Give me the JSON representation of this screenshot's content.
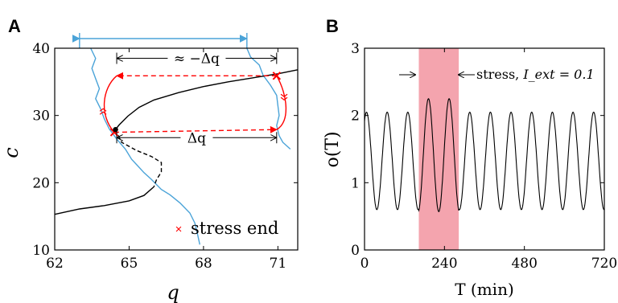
{
  "chart_data": [
    {
      "panel_letter": "A",
      "type": "line",
      "title": "",
      "xlabel": "q",
      "ylabel": "c",
      "xlim": [
        62,
        71.8
      ],
      "ylim": [
        10,
        40
      ],
      "x_ticks": [
        62,
        65,
        68,
        71
      ],
      "y_ticks": [
        10,
        20,
        30,
        40
      ],
      "grid": false,
      "colors": {
        "bifurcation": "#000000",
        "trajectory": "#4aa3d8",
        "stress": "#ff0000",
        "arrow": "#4aa3d8"
      },
      "series": [
        {
          "style": "solid-black",
          "points": [
            [
              71.8,
              36.8
            ],
            [
              71.0,
              36.2
            ],
            [
              70.0,
              35.6
            ],
            [
              69.0,
              35.0
            ],
            [
              68.0,
              34.3
            ],
            [
              67.0,
              33.4
            ],
            [
              66.0,
              32.3
            ],
            [
              65.4,
              31.2
            ],
            [
              64.95,
              29.9
            ],
            [
              64.6,
              28.6
            ],
            [
              64.45,
              27.9
            ]
          ]
        },
        {
          "style": "dashed-black",
          "points": [
            [
              64.45,
              27.9
            ],
            [
              64.7,
              26.0
            ],
            [
              65.3,
              24.8
            ],
            [
              65.9,
              23.9
            ],
            [
              66.3,
              23.0
            ],
            [
              66.3,
              21.6
            ],
            [
              66.1,
              20.4
            ],
            [
              66.0,
              19.4
            ]
          ]
        },
        {
          "style": "solid-black",
          "points": [
            [
              66.0,
              19.4
            ],
            [
              65.6,
              18.1
            ],
            [
              65.0,
              17.3
            ],
            [
              64.0,
              16.6
            ],
            [
              63.0,
              16.1
            ],
            [
              62.0,
              15.3
            ]
          ]
        },
        {
          "style": "blue-trajectory-left",
          "points": [
            [
              63.45,
              40.0
            ],
            [
              63.65,
              38.5
            ],
            [
              63.5,
              37.0
            ],
            [
              63.65,
              35.5
            ],
            [
              63.8,
              34.0
            ],
            [
              63.65,
              32.5
            ],
            [
              63.85,
              31.0
            ],
            [
              64.0,
              29.5
            ],
            [
              64.2,
              28.0
            ],
            [
              64.5,
              26.5
            ],
            [
              64.85,
              25.0
            ],
            [
              65.1,
              23.5
            ],
            [
              65.35,
              22.5
            ],
            [
              65.6,
              21.5
            ],
            [
              65.9,
              20.5
            ],
            [
              66.3,
              19.0
            ],
            [
              66.65,
              18.2
            ],
            [
              67.05,
              17.0
            ],
            [
              67.45,
              15.5
            ],
            [
              67.65,
              14.0
            ],
            [
              67.75,
              12.5
            ],
            [
              67.85,
              10.8
            ]
          ]
        },
        {
          "style": "blue-trajectory-right",
          "points": [
            [
              69.75,
              40.0
            ],
            [
              69.9,
              38.7
            ],
            [
              70.25,
              37.5
            ],
            [
              70.4,
              36.0
            ],
            [
              70.7,
              34.5
            ],
            [
              70.95,
              33.0
            ],
            [
              71.0,
              31.5
            ],
            [
              71.05,
              30.0
            ],
            [
              70.95,
              28.5
            ],
            [
              71.05,
              27.0
            ],
            [
              71.2,
              26.0
            ],
            [
              71.5,
              25.0
            ]
          ]
        }
      ],
      "stress_paths": [
        {
          "from": [
            64.4,
            27.5
          ],
          "to": [
            70.95,
            27.9
          ]
        },
        {
          "from": [
            70.95,
            35.9
          ],
          "to": [
            64.5,
            35.9
          ]
        }
      ],
      "stress_end_markers": [
        [
          64.4,
          27.5
        ],
        [
          70.95,
          35.9
        ]
      ],
      "equilibrium_point": [
        64.45,
        27.9
      ],
      "delta_q_annotations": [
        {
          "text": "≈ −Δq",
          "y": 38.5,
          "x_start": 64.5,
          "x_end": 70.95
        },
        {
          "text": "Δq",
          "y": 26.7,
          "x_start": 64.5,
          "x_end": 70.95
        }
      ],
      "blue_arrow": {
        "x_start": 63.0,
        "x_end": 69.75,
        "y": 41.2
      },
      "legend": {
        "marker": "×",
        "label": "stress end",
        "placement": "bottom-right"
      }
    },
    {
      "panel_letter": "B",
      "type": "line",
      "title": "",
      "xlabel": "T (min)",
      "ylabel": "o(T)",
      "xlim": [
        0,
        720
      ],
      "ylim": [
        0,
        3
      ],
      "x_ticks": [
        0,
        240,
        480,
        720
      ],
      "y_ticks": [
        0,
        1,
        2,
        3
      ],
      "grid": false,
      "colors": {
        "line": "#000000",
        "stress_band": "#f4a4ae"
      },
      "oscillation": {
        "period_min": 62,
        "phase_min": 6,
        "minimum": 0.6,
        "maximum": 2.05,
        "stress_maximum": 2.25,
        "stress_minimum": 0.57
      },
      "stress_interval_min": [
        163,
        283
      ],
      "annotation": {
        "text": "stress, ",
        "math": "I_ext = 0.1"
      }
    }
  ]
}
